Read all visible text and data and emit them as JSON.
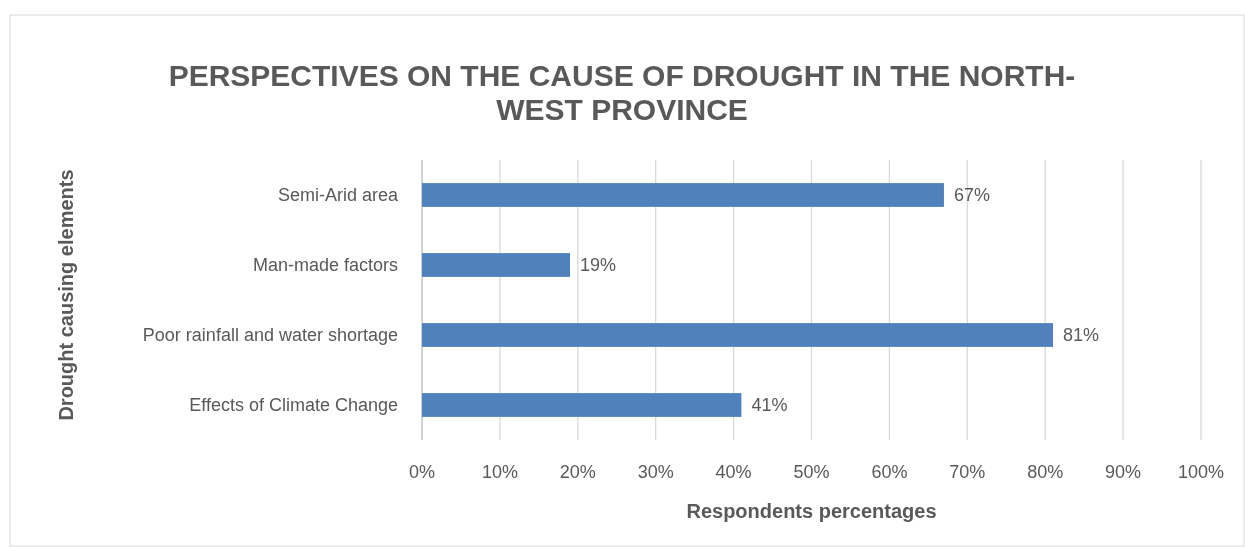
{
  "chart_data": {
    "type": "bar",
    "orientation": "horizontal",
    "title": "PERSPECTIVES ON THE CAUSE OF DROUGHT IN THE NORTH-WEST PROVINCE",
    "xlabel": "Respondents percentages",
    "ylabel": "Drought causing elements",
    "categories": [
      "Semi-Arid area",
      "Man-made factors",
      "Poor rainfall and water shortage",
      "Effects of Climate Change"
    ],
    "values": [
      67,
      19,
      81,
      41
    ],
    "value_labels": [
      "67%",
      "19%",
      "81%",
      "41%"
    ],
    "color": "#4f81bd",
    "xlim": [
      0,
      100
    ],
    "xticks": [
      {
        "value": 0,
        "label": "0%"
      },
      {
        "value": 10,
        "label": "10%"
      },
      {
        "value": 20,
        "label": "20%"
      },
      {
        "value": 30,
        "label": "30%"
      },
      {
        "value": 40,
        "label": "40%"
      },
      {
        "value": 50,
        "label": "50%"
      },
      {
        "value": 60,
        "label": "60%"
      },
      {
        "value": 70,
        "label": "70%"
      },
      {
        "value": 80,
        "label": "80%"
      },
      {
        "value": 90,
        "label": "90%"
      },
      {
        "value": 100,
        "label": "100%"
      }
    ],
    "grid": "x"
  }
}
